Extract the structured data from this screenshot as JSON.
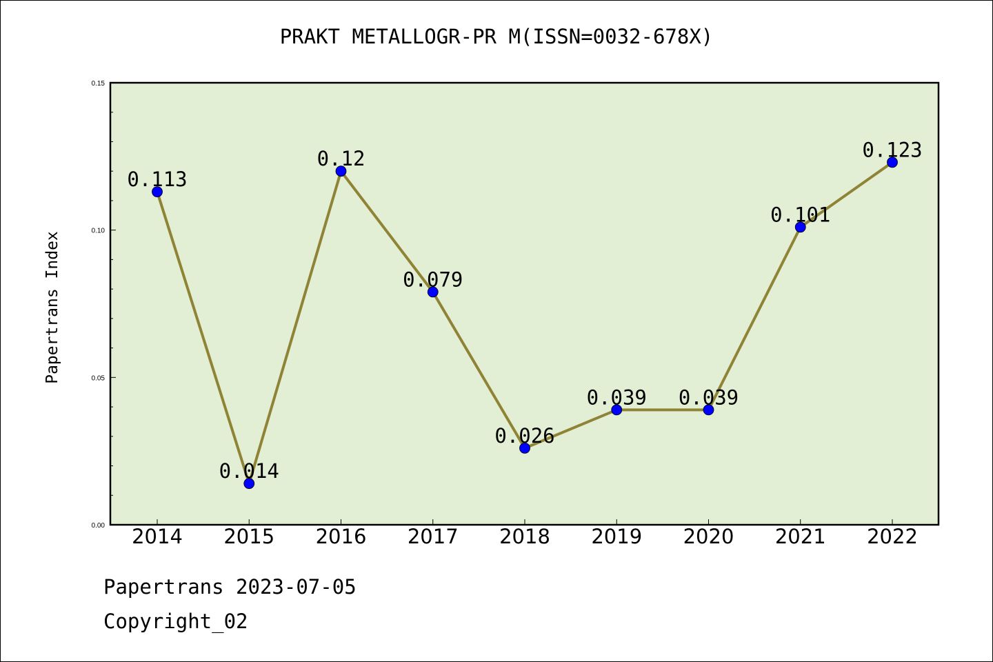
{
  "chart_data": {
    "type": "line",
    "title": "PRAKT METALLOGR-PR M(ISSN=0032-678X)",
    "xlabel": "",
    "ylabel": "Papertrans Index",
    "categories": [
      "2014",
      "2015",
      "2016",
      "2017",
      "2018",
      "2019",
      "2020",
      "2021",
      "2022"
    ],
    "values": [
      0.113,
      0.014,
      0.12,
      0.079,
      0.026,
      0.039,
      0.039,
      0.101,
      0.123
    ],
    "data_labels": [
      "0.113",
      "0.014",
      "0.12",
      "0.079",
      "0.026",
      "0.039",
      "0.039",
      "0.101",
      "0.123"
    ],
    "ylim": [
      0,
      0.15
    ],
    "yticks": [
      "0.00",
      "0.05",
      "0.10",
      "0.15"
    ],
    "grid": false,
    "colors": {
      "plot_background": "#e2efd5",
      "line": "#8f8436",
      "marker": "#0000ff"
    }
  },
  "footer": {
    "date_line": "Papertrans 2023-07-05",
    "copyright_line": "Copyright_02"
  }
}
